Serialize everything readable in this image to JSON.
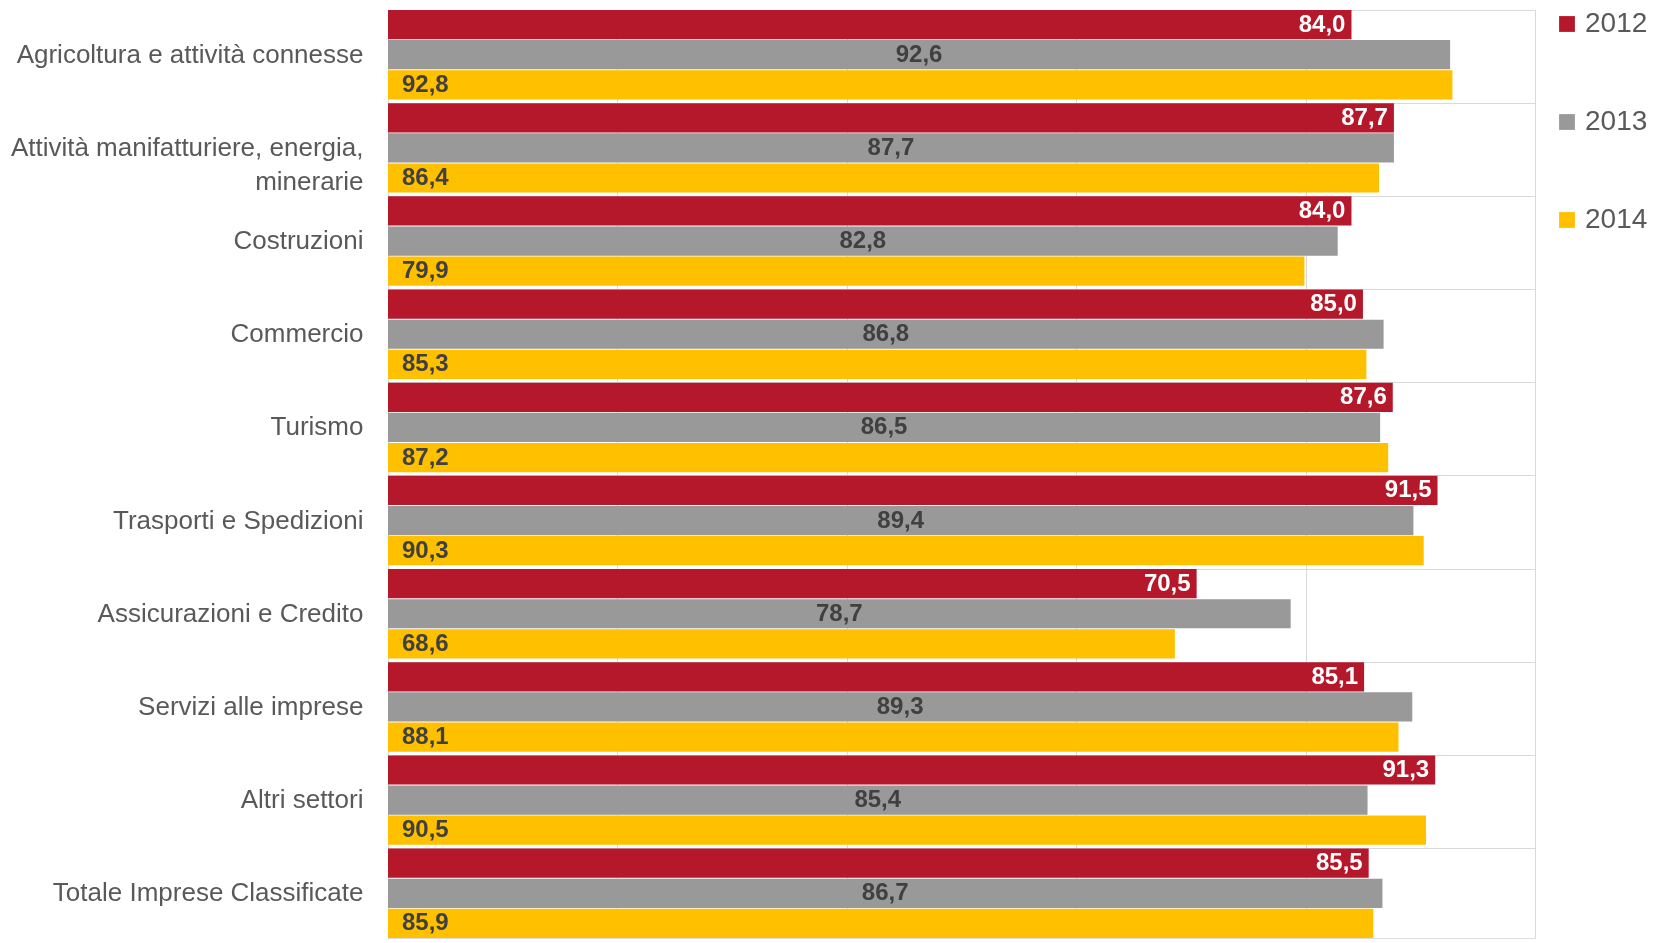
{
  "chart_data": {
    "type": "bar",
    "orientation": "horizontal",
    "categories": [
      "Agricoltura e attività connesse",
      "Attività manifatturiere, energia, minerarie",
      "Costruzioni",
      "Commercio",
      "Turismo",
      "Trasporti e Spedizioni",
      "Assicurazioni e Credito",
      "Servizi alle imprese",
      "Altri settori",
      "Totale Imprese Classificate"
    ],
    "series": [
      {
        "name": "2012",
        "color": "#b5172b",
        "values": [
          84.0,
          87.7,
          84.0,
          85.0,
          87.6,
          91.5,
          70.5,
          85.1,
          91.3,
          85.5
        ],
        "value_labels": [
          "84,0",
          "87,7",
          "84,0",
          "85,0",
          "87,6",
          "91,5",
          "70,5",
          "85,1",
          "91,3",
          "85,5"
        ]
      },
      {
        "name": "2013",
        "color": "#999999",
        "values": [
          92.6,
          87.7,
          82.8,
          86.8,
          86.5,
          89.4,
          78.7,
          89.3,
          85.4,
          86.7
        ],
        "value_labels": [
          "92,6",
          "87,7",
          "82,8",
          "86,8",
          "86,5",
          "89,4",
          "78,7",
          "89,3",
          "85,4",
          "86,7"
        ]
      },
      {
        "name": "2014",
        "color": "#ffc000",
        "values": [
          92.8,
          86.4,
          79.9,
          85.3,
          87.2,
          90.3,
          68.6,
          88.1,
          90.5,
          85.9
        ],
        "value_labels": [
          "92,8",
          "86,4",
          "79,9",
          "85,3",
          "87,2",
          "90,3",
          "68,6",
          "88,1",
          "90,5",
          "85,9"
        ]
      }
    ],
    "xlim": [
      0,
      100
    ],
    "xticks": [
      {
        "value": 0,
        "label": null
      },
      {
        "value": 20,
        "label": null
      },
      {
        "value": 40,
        "label": null
      },
      {
        "value": 60,
        "label": null
      },
      {
        "value": 80,
        "label": null
      },
      {
        "value": 100,
        "label": null
      }
    ],
    "tick_labels": "y",
    "grid": true,
    "legend": "right"
  }
}
